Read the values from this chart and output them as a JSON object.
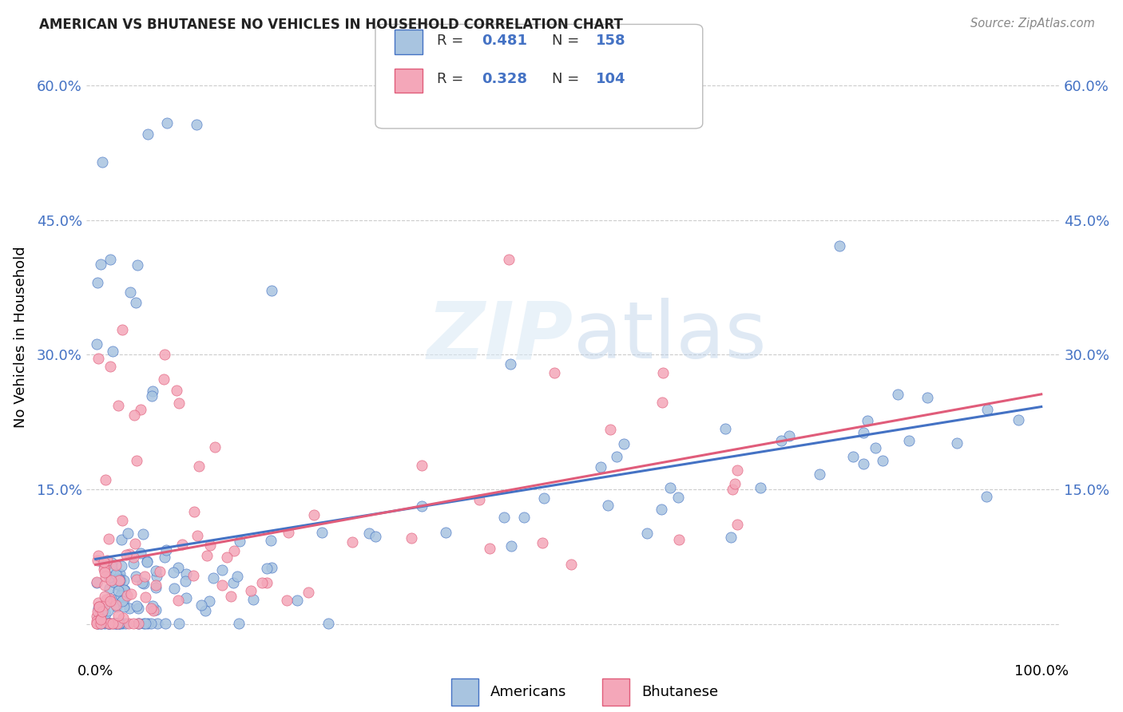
{
  "title": "AMERICAN VS BHUTANESE NO VEHICLES IN HOUSEHOLD CORRELATION CHART",
  "source": "Source: ZipAtlas.com",
  "ylabel": "No Vehicles in Household",
  "xlim": [
    -0.01,
    1.02
  ],
  "ylim": [
    -0.04,
    0.68
  ],
  "xticks": [
    0.0,
    0.25,
    0.5,
    0.75,
    1.0
  ],
  "xtick_labels": [
    "0.0%",
    "",
    "",
    "",
    "100.0%"
  ],
  "yticks": [
    0.0,
    0.15,
    0.3,
    0.45,
    0.6
  ],
  "ytick_labels": [
    "",
    "15.0%",
    "30.0%",
    "45.0%",
    "60.0%"
  ],
  "americans_R": 0.481,
  "americans_N": 158,
  "bhutanese_R": 0.328,
  "bhutanese_N": 104,
  "american_color": "#a8c4e0",
  "bhutanese_color": "#f4a7b9",
  "american_line_color": "#4472c4",
  "bhutanese_line_color": "#e05c7a",
  "background_color": "#ffffff",
  "grid_color": "#cccccc",
  "title_color": "#222222",
  "source_color": "#888888",
  "tick_color": "#4472c4"
}
